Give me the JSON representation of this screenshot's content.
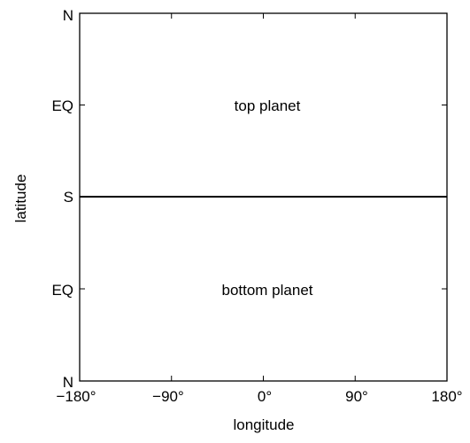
{
  "diagram": {
    "xlabel": "longitude",
    "ylabel": "latitude",
    "x_ticks": [
      "−180°",
      "−90°",
      "0°",
      "90°",
      "180°"
    ],
    "y_ticks": [
      "N",
      "EQ",
      "S",
      "EQ",
      "N"
    ],
    "regions": [
      {
        "label": "top planet"
      },
      {
        "label": "bottom planet"
      }
    ],
    "colors": {
      "axis": "#000000",
      "background": "#ffffff"
    }
  }
}
